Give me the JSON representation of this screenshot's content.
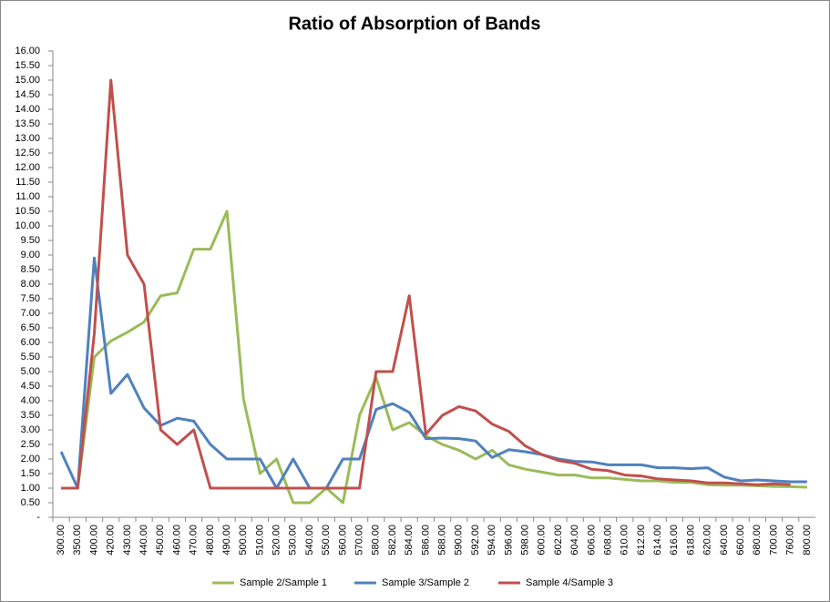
{
  "chart_data": {
    "type": "line",
    "title": "Ratio of Absorption of Bands",
    "categories": [
      "300.00",
      "350.00",
      "400.00",
      "420.00",
      "430.00",
      "440.00",
      "450.00",
      "460.00",
      "470.00",
      "480.00",
      "490.00",
      "500.00",
      "510.00",
      "520.00",
      "530.00",
      "540.00",
      "550.00",
      "560.00",
      "570.00",
      "580.00",
      "582.00",
      "584.00",
      "586.00",
      "588.00",
      "590.00",
      "592.00",
      "594.00",
      "596.00",
      "598.00",
      "600.00",
      "602.00",
      "604.00",
      "606.00",
      "608.00",
      "610.00",
      "612.00",
      "614.00",
      "616.00",
      "618.00",
      "620.00",
      "640.00",
      "660.00",
      "680.00",
      "700.00",
      "760.00",
      "800.00"
    ],
    "series": [
      {
        "name": "Sample 2/Sample 1",
        "color": "#9bbb59",
        "values": [
          1,
          1,
          5.5,
          6.05,
          6.35,
          6.7,
          7.6,
          7.7,
          9.2,
          9.2,
          10.5,
          4.05,
          1.5,
          2.0,
          0.5,
          0.5,
          1.0,
          0.5,
          3.5,
          4.8,
          3.0,
          3.25,
          2.8,
          2.5,
          2.3,
          2.0,
          2.3,
          1.8,
          1.65,
          1.55,
          1.45,
          1.45,
          1.35,
          1.35,
          1.3,
          1.25,
          1.25,
          1.2,
          1.2,
          1.12,
          1.1,
          1.1,
          1.08,
          1.06,
          1.05,
          1.03
        ]
      },
      {
        "name": "Sample 3/Sample 2",
        "color": "#4f81bd",
        "values": [
          2.25,
          1.0,
          8.9,
          4.25,
          4.9,
          3.75,
          3.15,
          3.4,
          3.3,
          2.5,
          2.0,
          2.0,
          2.0,
          1.0,
          2.0,
          1.0,
          1.0,
          2.0,
          2.0,
          3.7,
          3.9,
          3.6,
          2.7,
          2.72,
          2.7,
          2.62,
          2.05,
          2.32,
          2.25,
          2.15,
          2.0,
          1.92,
          1.9,
          1.8,
          1.8,
          1.8,
          1.7,
          1.7,
          1.67,
          1.7,
          1.38,
          1.25,
          1.28,
          1.25,
          1.22,
          1.22
        ]
      },
      {
        "name": "Sample 4/Sample 3",
        "color": "#c0504d",
        "values": [
          1,
          1,
          6.3,
          15,
          9.0,
          8.0,
          3.0,
          2.5,
          3.0,
          1.0,
          1.0,
          1.0,
          1.0,
          1.0,
          1.0,
          1.0,
          1.0,
          1.0,
          1.0,
          5.0,
          5.0,
          7.6,
          2.85,
          3.5,
          3.8,
          3.65,
          3.2,
          2.95,
          2.45,
          2.15,
          1.95,
          1.85,
          1.65,
          1.6,
          1.45,
          1.42,
          1.32,
          1.28,
          1.25,
          1.18,
          1.18,
          1.15,
          1.12,
          1.15,
          1.12,
          null
        ]
      }
    ],
    "ylim": [
      0,
      16
    ],
    "yticks": [
      {
        "value": 0,
        "label": "-"
      },
      {
        "value": 0.5,
        "label": "0.50"
      },
      {
        "value": 1,
        "label": "1.00"
      },
      {
        "value": 1.5,
        "label": "1.50"
      },
      {
        "value": 2,
        "label": "2.00"
      },
      {
        "value": 2.5,
        "label": "2.50"
      },
      {
        "value": 3,
        "label": "3.00"
      },
      {
        "value": 3.5,
        "label": "3.50"
      },
      {
        "value": 4,
        "label": "4.00"
      },
      {
        "value": 4.5,
        "label": "4.50"
      },
      {
        "value": 5,
        "label": "5.00"
      },
      {
        "value": 5.5,
        "label": "5.50"
      },
      {
        "value": 6,
        "label": "6.00"
      },
      {
        "value": 6.5,
        "label": "6.50"
      },
      {
        "value": 7,
        "label": "7.00"
      },
      {
        "value": 7.5,
        "label": "7.50"
      },
      {
        "value": 8,
        "label": "8.00"
      },
      {
        "value": 8.5,
        "label": "8.50"
      },
      {
        "value": 9,
        "label": "9.00"
      },
      {
        "value": 9.5,
        "label": "9.50"
      },
      {
        "value": 10,
        "label": "10.00"
      },
      {
        "value": 10.5,
        "label": "10.50"
      },
      {
        "value": 11,
        "label": "11.00"
      },
      {
        "value": 11.5,
        "label": "11.50"
      },
      {
        "value": 12,
        "label": "12.00"
      },
      {
        "value": 12.5,
        "label": "12.50"
      },
      {
        "value": 13,
        "label": "13.00"
      },
      {
        "value": 13.5,
        "label": "13.50"
      },
      {
        "value": 14,
        "label": "14.00"
      },
      {
        "value": 14.5,
        "label": "14.50"
      },
      {
        "value": 15,
        "label": "15.00"
      },
      {
        "value": 15.5,
        "label": "15.50"
      },
      {
        "value": 16,
        "label": "16.00"
      }
    ],
    "grid": false
  }
}
